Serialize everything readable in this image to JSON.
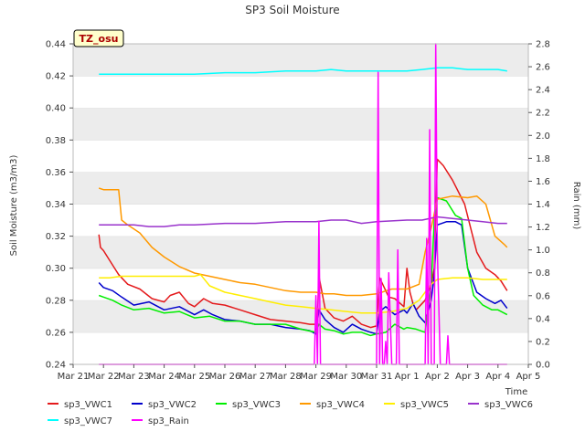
{
  "chart_data": {
    "type": "line",
    "title": "SP3 Soil Moisture",
    "badge": "TZ_osu",
    "xlabel": "Time",
    "ylabel_left": "Soil Moisture (m3/m3)",
    "ylabel_right": "Rain (mm)",
    "x_tick_labels": [
      "Mar 21",
      "Mar 22",
      "Mar 23",
      "Mar 24",
      "Mar 25",
      "Mar 26",
      "Mar 27",
      "Mar 28",
      "Mar 29",
      "Mar 30",
      "Mar 31",
      "Apr 1",
      "Apr 2",
      "Apr 3",
      "Apr 4",
      "Apr 5"
    ],
    "xlim_days": [
      0,
      15
    ],
    "ylim_left": [
      0.24,
      0.44
    ],
    "ylim_right": [
      0.0,
      2.8
    ],
    "y_ticks_left": [
      "0.24",
      "0.26",
      "0.28",
      "0.30",
      "0.32",
      "0.34",
      "0.36",
      "0.38",
      "0.40",
      "0.42",
      "0.44"
    ],
    "y_ticks_right": [
      "0.0",
      "0.2",
      "0.4",
      "0.6",
      "0.8",
      "1.0",
      "1.2",
      "1.4",
      "1.6",
      "1.8",
      "2.0",
      "2.2",
      "2.4",
      "2.6",
      "2.8"
    ],
    "grid": "horizontal bands",
    "legend_position": "bottom",
    "series": [
      {
        "name": "sp3_VWC1",
        "color": "#e41a1c",
        "axis": "left",
        "x": [
          0.85,
          0.9,
          1.0,
          1.2,
          1.5,
          1.8,
          2.2,
          2.6,
          3.0,
          3.2,
          3.5,
          3.8,
          4.0,
          4.3,
          4.6,
          5.0,
          5.5,
          6.0,
          6.5,
          7.0,
          7.5,
          7.8,
          8.0,
          8.05,
          8.1,
          8.3,
          8.6,
          8.9,
          9.2,
          9.5,
          9.8,
          10.0,
          10.1,
          10.4,
          10.6,
          10.9,
          11.0,
          11.1,
          11.2,
          11.3,
          11.6,
          11.8,
          11.9,
          12.0,
          12.2,
          12.5,
          12.9,
          13.3,
          13.6,
          13.9,
          14.1,
          14.3
        ],
        "y": [
          0.321,
          0.313,
          0.311,
          0.305,
          0.296,
          0.29,
          0.287,
          0.281,
          0.279,
          0.283,
          0.285,
          0.278,
          0.276,
          0.281,
          0.278,
          0.277,
          0.274,
          0.271,
          0.268,
          0.267,
          0.266,
          0.265,
          0.265,
          0.27,
          0.295,
          0.275,
          0.269,
          0.267,
          0.27,
          0.265,
          0.263,
          0.264,
          0.294,
          0.282,
          0.281,
          0.276,
          0.3,
          0.285,
          0.278,
          0.274,
          0.28,
          0.29,
          0.3,
          0.368,
          0.364,
          0.355,
          0.34,
          0.31,
          0.3,
          0.296,
          0.292,
          0.286
        ]
      },
      {
        "name": "sp3_VWC2",
        "color": "#0000cc",
        "axis": "left",
        "x": [
          0.85,
          1.0,
          1.3,
          1.6,
          2.0,
          2.5,
          3.0,
          3.5,
          4.0,
          4.3,
          4.6,
          5.0,
          5.5,
          6.0,
          6.5,
          7.0,
          7.5,
          7.8,
          8.0,
          8.1,
          8.3,
          8.6,
          8.9,
          9.2,
          9.5,
          9.8,
          10.0,
          10.1,
          10.3,
          10.6,
          10.9,
          11.0,
          11.2,
          11.4,
          11.6,
          11.8,
          11.9,
          12.0,
          12.3,
          12.6,
          12.8,
          13.0,
          13.3,
          13.6,
          13.9,
          14.1,
          14.3
        ],
        "y": [
          0.291,
          0.288,
          0.286,
          0.282,
          0.277,
          0.279,
          0.274,
          0.276,
          0.271,
          0.274,
          0.271,
          0.268,
          0.267,
          0.265,
          0.265,
          0.263,
          0.262,
          0.261,
          0.259,
          0.274,
          0.268,
          0.263,
          0.26,
          0.265,
          0.262,
          0.26,
          0.259,
          0.273,
          0.276,
          0.271,
          0.274,
          0.272,
          0.278,
          0.27,
          0.266,
          0.28,
          0.296,
          0.327,
          0.329,
          0.329,
          0.327,
          0.3,
          0.285,
          0.281,
          0.278,
          0.28,
          0.275
        ]
      },
      {
        "name": "sp3_VWC3",
        "color": "#00ee00",
        "axis": "left",
        "x": [
          0.85,
          1.0,
          1.3,
          1.6,
          2.0,
          2.5,
          3.0,
          3.5,
          4.0,
          4.5,
          5.0,
          5.5,
          6.0,
          6.5,
          7.0,
          7.5,
          8.0,
          8.1,
          8.3,
          8.6,
          8.9,
          9.2,
          9.5,
          9.8,
          10.0,
          10.3,
          10.6,
          10.9,
          11.0,
          11.3,
          11.6,
          11.8,
          11.9,
          12.0,
          12.3,
          12.6,
          12.8,
          13.0,
          13.2,
          13.5,
          13.8,
          14.0,
          14.3
        ],
        "y": [
          0.283,
          0.282,
          0.28,
          0.277,
          0.274,
          0.275,
          0.272,
          0.273,
          0.269,
          0.27,
          0.267,
          0.267,
          0.265,
          0.265,
          0.265,
          0.262,
          0.26,
          0.265,
          0.262,
          0.261,
          0.259,
          0.26,
          0.26,
          0.258,
          0.259,
          0.26,
          0.265,
          0.262,
          0.263,
          0.262,
          0.26,
          0.29,
          0.33,
          0.344,
          0.342,
          0.333,
          0.331,
          0.3,
          0.283,
          0.277,
          0.274,
          0.274,
          0.271
        ]
      },
      {
        "name": "sp3_VWC4",
        "color": "#ff9900",
        "axis": "left",
        "x": [
          0.85,
          1.0,
          1.3,
          1.5,
          1.6,
          1.8,
          2.2,
          2.6,
          3.0,
          3.5,
          4.0,
          4.5,
          5.0,
          5.5,
          6.0,
          6.5,
          7.0,
          7.5,
          8.0,
          8.3,
          8.6,
          9.0,
          9.5,
          10.0,
          10.5,
          11.0,
          11.4,
          11.6,
          11.8,
          12.0,
          12.5,
          13.0,
          13.3,
          13.6,
          13.9,
          14.2,
          14.3
        ],
        "y": [
          0.35,
          0.349,
          0.349,
          0.349,
          0.33,
          0.327,
          0.322,
          0.313,
          0.307,
          0.301,
          0.297,
          0.295,
          0.293,
          0.291,
          0.29,
          0.288,
          0.286,
          0.285,
          0.285,
          0.284,
          0.284,
          0.283,
          0.283,
          0.284,
          0.287,
          0.287,
          0.29,
          0.31,
          0.325,
          0.343,
          0.345,
          0.344,
          0.345,
          0.34,
          0.32,
          0.315,
          0.313
        ]
      },
      {
        "name": "sp3_VWC5",
        "color": "#ffee00",
        "axis": "left",
        "x": [
          0.85,
          1.2,
          1.6,
          2.0,
          2.5,
          3.0,
          3.5,
          4.0,
          4.2,
          4.5,
          5.0,
          5.5,
          6.0,
          6.5,
          7.0,
          7.5,
          8.0,
          8.5,
          9.0,
          9.5,
          10.0,
          10.5,
          11.0,
          11.4,
          11.6,
          11.8,
          12.0,
          12.5,
          13.0,
          13.5,
          14.0,
          14.3
        ],
        "y": [
          0.294,
          0.294,
          0.295,
          0.295,
          0.295,
          0.295,
          0.295,
          0.295,
          0.296,
          0.289,
          0.285,
          0.283,
          0.281,
          0.279,
          0.277,
          0.276,
          0.275,
          0.274,
          0.273,
          0.272,
          0.272,
          0.273,
          0.275,
          0.28,
          0.285,
          0.29,
          0.293,
          0.294,
          0.294,
          0.293,
          0.293,
          0.293
        ]
      },
      {
        "name": "sp3_VWC6",
        "color": "#9933cc",
        "axis": "left",
        "x": [
          0.85,
          1.5,
          2.0,
          2.5,
          3.0,
          3.5,
          4.0,
          5.0,
          6.0,
          7.0,
          8.0,
          8.5,
          9.0,
          9.5,
          10.0,
          11.0,
          11.5,
          12.0,
          12.5,
          13.0,
          13.5,
          14.0,
          14.3
        ],
        "y": [
          0.327,
          0.327,
          0.327,
          0.326,
          0.326,
          0.327,
          0.327,
          0.328,
          0.328,
          0.329,
          0.329,
          0.33,
          0.33,
          0.328,
          0.329,
          0.33,
          0.33,
          0.332,
          0.331,
          0.33,
          0.329,
          0.328,
          0.328
        ]
      },
      {
        "name": "sp3_VWC7",
        "color": "#00ffff",
        "axis": "left",
        "x": [
          0.85,
          1.5,
          2.0,
          3.0,
          4.0,
          5.0,
          6.0,
          7.0,
          8.0,
          8.5,
          9.0,
          10.0,
          11.0,
          11.5,
          12.0,
          12.5,
          13.0,
          13.5,
          14.0,
          14.3
        ],
        "y": [
          0.421,
          0.421,
          0.421,
          0.421,
          0.421,
          0.422,
          0.422,
          0.423,
          0.423,
          0.424,
          0.423,
          0.423,
          0.423,
          0.424,
          0.425,
          0.425,
          0.424,
          0.424,
          0.424,
          0.423
        ]
      },
      {
        "name": "sp3_Rain",
        "color": "#ff00ff",
        "axis": "right",
        "x": [
          0.85,
          7.95,
          8.0,
          8.05,
          8.1,
          8.15,
          8.2,
          8.25,
          8.3,
          10.0,
          10.05,
          10.1,
          10.15,
          10.2,
          10.25,
          10.3,
          10.35,
          10.4,
          10.5,
          10.55,
          10.6,
          10.65,
          10.7,
          10.75,
          10.8,
          10.85,
          10.9,
          10.95,
          11.0,
          11.05,
          11.1,
          11.15,
          11.2,
          11.3,
          11.4,
          11.5,
          11.55,
          11.6,
          11.65,
          11.7,
          11.75,
          11.8,
          11.85,
          11.9,
          11.95,
          12.0,
          12.05,
          12.1,
          12.15,
          12.2,
          12.25,
          12.3,
          12.35,
          12.4,
          12.45,
          14.3
        ],
        "y": [
          0.0,
          0.0,
          0.6,
          0.0,
          1.25,
          0.0,
          0.0,
          0.0,
          0.0,
          0.0,
          2.55,
          0.0,
          0.75,
          0.0,
          0.0,
          0.2,
          0.0,
          0.8,
          0.0,
          0.0,
          0.0,
          0.0,
          1.0,
          0.0,
          0.0,
          0.0,
          0.0,
          0.0,
          0.0,
          0.0,
          0.0,
          0.0,
          0.0,
          0.0,
          0.0,
          0.0,
          0.0,
          0.0,
          1.1,
          0.0,
          2.05,
          0.0,
          0.0,
          0.0,
          2.8,
          1.0,
          0.5,
          0.0,
          0.0,
          0.0,
          0.0,
          0.0,
          0.25,
          0.0,
          0.0,
          0.0
        ]
      }
    ]
  }
}
